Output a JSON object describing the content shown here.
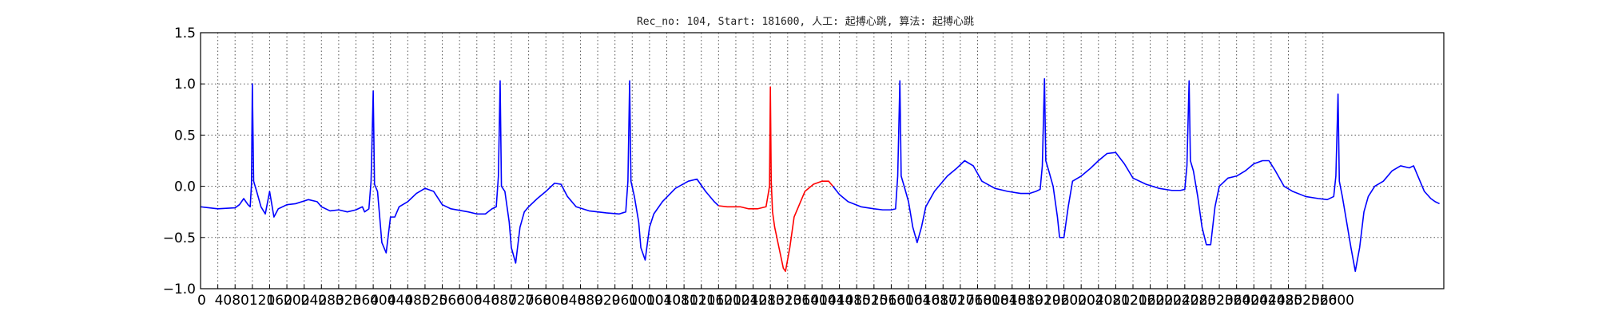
{
  "chart_data": {
    "type": "line",
    "title": "Rec_no: 104, Start: 181600, 人工: 起搏心跳, 算法: 起搏心跳",
    "xlabel": "",
    "ylabel": "",
    "xlim": [
      0,
      2880
    ],
    "ylim": [
      -1.0,
      1.5
    ],
    "yticks": [
      -1.0,
      -0.5,
      0.0,
      0.5,
      1.0,
      1.5
    ],
    "ytick_labels": [
      "−1.0",
      "−0.5",
      "0.0",
      "0.5",
      "1.0",
      "1.5"
    ],
    "xticks": [
      0,
      40,
      80,
      120,
      160,
      200,
      240,
      280,
      320,
      360,
      400,
      440,
      480,
      520,
      560,
      600,
      640,
      680,
      720,
      760,
      800,
      840,
      880,
      920,
      960,
      1000,
      1040,
      1080,
      1120,
      1160,
      1200,
      1240,
      1280,
      1320,
      1360,
      1400,
      1440,
      1480,
      1520,
      1560,
      1600,
      1640,
      1680,
      1720,
      1760,
      1800,
      1840,
      1880,
      1920,
      1960,
      2000,
      2040,
      2080,
      2120,
      2160,
      2200,
      2240,
      2280,
      2320,
      2360,
      2400,
      2440,
      2480,
      2520,
      2560,
      2600
    ],
    "grid": true,
    "series": [
      {
        "color": "#0000ff",
        "points": [
          [
            0,
            -0.2
          ],
          [
            40,
            -0.22
          ],
          [
            80,
            -0.21
          ],
          [
            90,
            -0.18
          ],
          [
            100,
            -0.12
          ],
          [
            110,
            -0.18
          ],
          [
            115,
            -0.2
          ],
          [
            118,
            0.02
          ],
          [
            120,
            1.0
          ],
          [
            123,
            0.05
          ],
          [
            130,
            -0.05
          ],
          [
            140,
            -0.2
          ],
          [
            150,
            -0.27
          ],
          [
            160,
            -0.05
          ],
          [
            170,
            -0.3
          ],
          [
            180,
            -0.22
          ],
          [
            200,
            -0.18
          ],
          [
            220,
            -0.17
          ],
          [
            250,
            -0.13
          ],
          [
            270,
            -0.15
          ],
          [
            280,
            -0.2
          ],
          [
            300,
            -0.24
          ],
          [
            320,
            -0.23
          ],
          [
            340,
            -0.25
          ],
          [
            360,
            -0.23
          ],
          [
            375,
            -0.2
          ],
          [
            380,
            -0.25
          ],
          [
            390,
            -0.22
          ],
          [
            395,
            0.05
          ],
          [
            400,
            0.93
          ],
          [
            403,
            0.02
          ],
          [
            410,
            -0.05
          ],
          [
            415,
            -0.3
          ],
          [
            420,
            -0.55
          ],
          [
            430,
            -0.65
          ],
          [
            440,
            -0.3
          ],
          [
            450,
            -0.3
          ],
          [
            460,
            -0.2
          ],
          [
            480,
            -0.15
          ],
          [
            500,
            -0.07
          ],
          [
            520,
            -0.02
          ],
          [
            540,
            -0.05
          ],
          [
            560,
            -0.18
          ],
          [
            580,
            -0.22
          ],
          [
            620,
            -0.25
          ],
          [
            640,
            -0.27
          ],
          [
            660,
            -0.27
          ],
          [
            675,
            -0.22
          ],
          [
            685,
            -0.2
          ],
          [
            690,
            0.1
          ],
          [
            694,
            1.03
          ],
          [
            697,
            0.0
          ],
          [
            705,
            -0.05
          ],
          [
            715,
            -0.35
          ],
          [
            720,
            -0.6
          ],
          [
            730,
            -0.75
          ],
          [
            740,
            -0.4
          ],
          [
            750,
            -0.25
          ],
          [
            760,
            -0.2
          ],
          [
            780,
            -0.12
          ],
          [
            800,
            -0.05
          ],
          [
            820,
            0.03
          ],
          [
            835,
            0.02
          ],
          [
            850,
            -0.1
          ],
          [
            870,
            -0.2
          ],
          [
            900,
            -0.24
          ],
          [
            940,
            -0.26
          ],
          [
            970,
            -0.27
          ],
          [
            985,
            -0.25
          ],
          [
            990,
            0.05
          ],
          [
            994,
            1.03
          ],
          [
            997,
            0.05
          ],
          [
            1005,
            -0.1
          ],
          [
            1015,
            -0.35
          ],
          [
            1020,
            -0.6
          ],
          [
            1030,
            -0.72
          ],
          [
            1040,
            -0.4
          ],
          [
            1050,
            -0.27
          ],
          [
            1070,
            -0.15
          ],
          [
            1100,
            -0.02
          ],
          [
            1130,
            0.05
          ],
          [
            1150,
            0.07
          ],
          [
            1170,
            -0.05
          ],
          [
            1190,
            -0.15
          ],
          [
            1200,
            -0.19
          ]
        ]
      },
      {
        "color": "#ff0000",
        "points": [
          [
            1200,
            -0.19
          ],
          [
            1220,
            -0.2
          ],
          [
            1250,
            -0.2
          ],
          [
            1270,
            -0.22
          ],
          [
            1290,
            -0.22
          ],
          [
            1310,
            -0.2
          ],
          [
            1318,
            0.0
          ],
          [
            1320,
            0.97
          ],
          [
            1322,
            0.05
          ],
          [
            1325,
            -0.25
          ],
          [
            1330,
            -0.4
          ],
          [
            1340,
            -0.6
          ],
          [
            1350,
            -0.8
          ],
          [
            1355,
            -0.83
          ],
          [
            1365,
            -0.6
          ],
          [
            1375,
            -0.3
          ],
          [
            1385,
            -0.2
          ],
          [
            1400,
            -0.05
          ],
          [
            1420,
            0.02
          ],
          [
            1440,
            0.05
          ],
          [
            1455,
            0.05
          ],
          [
            1465,
            0.0
          ]
        ]
      },
      {
        "color": "#0000ff",
        "points": [
          [
            1465,
            0.0
          ],
          [
            1480,
            -0.08
          ],
          [
            1500,
            -0.15
          ],
          [
            1530,
            -0.2
          ],
          [
            1560,
            -0.22
          ],
          [
            1580,
            -0.23
          ],
          [
            1600,
            -0.23
          ],
          [
            1610,
            -0.22
          ],
          [
            1615,
            0.1
          ],
          [
            1620,
            1.03
          ],
          [
            1623,
            0.1
          ],
          [
            1630,
            0.0
          ],
          [
            1640,
            -0.15
          ],
          [
            1650,
            -0.4
          ],
          [
            1660,
            -0.55
          ],
          [
            1670,
            -0.4
          ],
          [
            1680,
            -0.2
          ],
          [
            1700,
            -0.05
          ],
          [
            1730,
            0.1
          ],
          [
            1750,
            0.17
          ],
          [
            1770,
            0.25
          ],
          [
            1790,
            0.2
          ],
          [
            1810,
            0.05
          ],
          [
            1840,
            -0.02
          ],
          [
            1870,
            -0.05
          ],
          [
            1900,
            -0.07
          ],
          [
            1920,
            -0.07
          ],
          [
            1935,
            -0.05
          ],
          [
            1945,
            -0.03
          ],
          [
            1950,
            0.2
          ],
          [
            1955,
            1.05
          ],
          [
            1958,
            0.25
          ],
          [
            1965,
            0.15
          ],
          [
            1975,
            0.0
          ],
          [
            1985,
            -0.3
          ],
          [
            1990,
            -0.5
          ],
          [
            2000,
            -0.5
          ],
          [
            2010,
            -0.2
          ],
          [
            2020,
            0.05
          ],
          [
            2040,
            0.1
          ],
          [
            2060,
            0.17
          ],
          [
            2080,
            0.25
          ],
          [
            2100,
            0.32
          ],
          [
            2120,
            0.33
          ],
          [
            2140,
            0.22
          ],
          [
            2160,
            0.08
          ],
          [
            2190,
            0.02
          ],
          [
            2220,
            -0.02
          ],
          [
            2250,
            -0.04
          ],
          [
            2270,
            -0.04
          ],
          [
            2280,
            -0.03
          ],
          [
            2285,
            0.2
          ],
          [
            2290,
            1.03
          ],
          [
            2293,
            0.25
          ],
          [
            2300,
            0.15
          ],
          [
            2310,
            -0.1
          ],
          [
            2320,
            -0.4
          ],
          [
            2330,
            -0.57
          ],
          [
            2340,
            -0.57
          ],
          [
            2350,
            -0.2
          ],
          [
            2360,
            0.0
          ],
          [
            2380,
            0.08
          ],
          [
            2400,
            0.1
          ],
          [
            2420,
            0.15
          ],
          [
            2440,
            0.22
          ],
          [
            2460,
            0.25
          ],
          [
            2475,
            0.25
          ],
          [
            2490,
            0.15
          ],
          [
            2510,
            0.0
          ],
          [
            2530,
            -0.05
          ],
          [
            2560,
            -0.1
          ],
          [
            2590,
            -0.12
          ],
          [
            2610,
            -0.13
          ],
          [
            2625,
            -0.1
          ],
          [
            2630,
            0.1
          ],
          [
            2635,
            0.9
          ],
          [
            2638,
            0.05
          ],
          [
            2645,
            -0.1
          ],
          [
            2655,
            -0.35
          ],
          [
            2665,
            -0.6
          ],
          [
            2675,
            -0.83
          ],
          [
            2685,
            -0.6
          ],
          [
            2695,
            -0.25
          ],
          [
            2705,
            -0.1
          ],
          [
            2720,
            0.0
          ],
          [
            2740,
            0.05
          ],
          [
            2760,
            0.15
          ],
          [
            2780,
            0.2
          ],
          [
            2800,
            0.18
          ],
          [
            2810,
            0.2
          ],
          [
            2820,
            0.1
          ],
          [
            2835,
            -0.05
          ],
          [
            2850,
            -0.12
          ],
          [
            2860,
            -0.15
          ],
          [
            2870,
            -0.17
          ]
        ]
      }
    ]
  }
}
